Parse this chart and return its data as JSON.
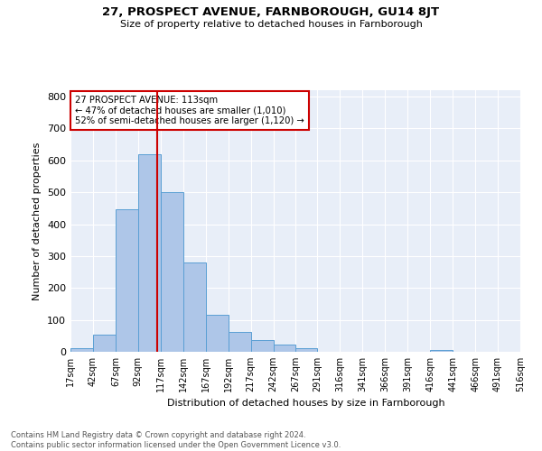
{
  "title1": "27, PROSPECT AVENUE, FARNBOROUGH, GU14 8JT",
  "title2": "Size of property relative to detached houses in Farnborough",
  "xlabel": "Distribution of detached houses by size in Farnborough",
  "ylabel": "Number of detached properties",
  "footer1": "Contains HM Land Registry data © Crown copyright and database right 2024.",
  "footer2": "Contains public sector information licensed under the Open Government Licence v3.0.",
  "annotation_line1": "27 PROSPECT AVENUE: 113sqm",
  "annotation_line2": "← 47% of detached houses are smaller (1,010)",
  "annotation_line3": "52% of semi-detached houses are larger (1,120) →",
  "bar_color": "#aec6e8",
  "bar_edge_color": "#5a9fd4",
  "vline_color": "#cc0000",
  "vline_x": 113,
  "background_color": "#e8eef8",
  "bin_edges": [
    17,
    42,
    67,
    92,
    117,
    142,
    167,
    192,
    217,
    242,
    267,
    291,
    316,
    341,
    366,
    391,
    416,
    441,
    466,
    491,
    516
  ],
  "bin_heights": [
    12,
    53,
    447,
    618,
    500,
    280,
    115,
    62,
    37,
    22,
    10,
    0,
    0,
    0,
    0,
    0,
    7,
    0,
    0,
    0
  ],
  "ylim": [
    0,
    820
  ],
  "yticks": [
    0,
    100,
    200,
    300,
    400,
    500,
    600,
    700,
    800
  ],
  "tick_labels": [
    "17sqm",
    "42sqm",
    "67sqm",
    "92sqm",
    "117sqm",
    "142sqm",
    "167sqm",
    "192sqm",
    "217sqm",
    "242sqm",
    "267sqm",
    "291sqm",
    "316sqm",
    "341sqm",
    "366sqm",
    "391sqm",
    "416sqm",
    "441sqm",
    "466sqm",
    "491sqm",
    "516sqm"
  ]
}
